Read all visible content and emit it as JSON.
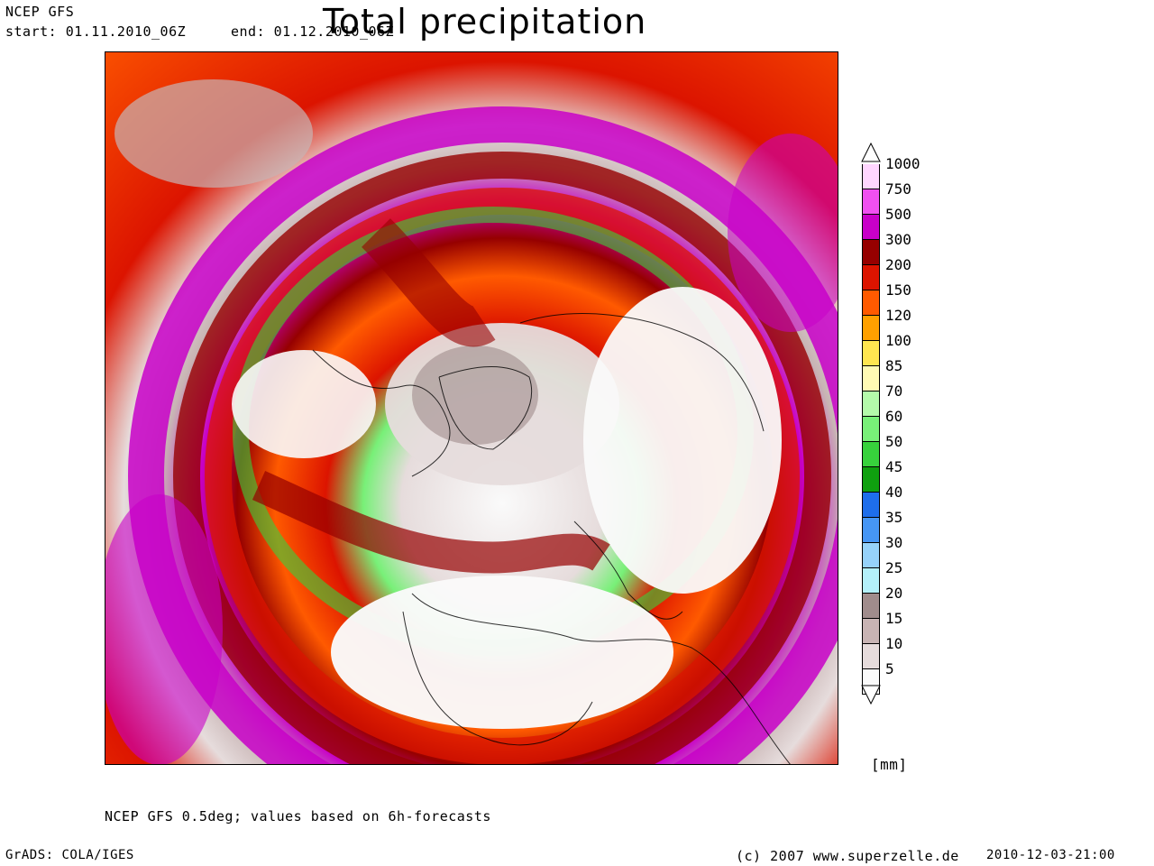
{
  "header": {
    "model": "NCEP GFS",
    "start": "start: 01.11.2010_06Z",
    "end": "end: 01.12.2010_06Z",
    "title": "Total precipitation"
  },
  "legend": {
    "unit": "[mm]",
    "levels": [
      {
        "label": "1000",
        "color": "#ffd6ff"
      },
      {
        "label": "750",
        "color": "#f050f0"
      },
      {
        "label": "500",
        "color": "#c800c8"
      },
      {
        "label": "300",
        "color": "#960000"
      },
      {
        "label": "200",
        "color": "#dc1400"
      },
      {
        "label": "150",
        "color": "#ff5a00"
      },
      {
        "label": "120",
        "color": "#ffa000"
      },
      {
        "label": "100",
        "color": "#ffe650"
      },
      {
        "label": "85",
        "color": "#fffab4"
      },
      {
        "label": "70",
        "color": "#b4faaa"
      },
      {
        "label": "60",
        "color": "#78f078"
      },
      {
        "label": "50",
        "color": "#37d23c"
      },
      {
        "label": "45",
        "color": "#0fa00f"
      },
      {
        "label": "40",
        "color": "#1e6eeb"
      },
      {
        "label": "35",
        "color": "#4696f5"
      },
      {
        "label": "30",
        "color": "#96d2fa"
      },
      {
        "label": "25",
        "color": "#b4f0fa"
      },
      {
        "label": "20",
        "color": "#a08c8c"
      },
      {
        "label": "15",
        "color": "#c8b4b4"
      },
      {
        "label": "10",
        "color": "#e6dcdc"
      },
      {
        "label": "5",
        "color": "#fafafa"
      }
    ]
  },
  "footer": {
    "note": "NCEP GFS 0.5deg; values based on 6h-forecasts",
    "grads": "GrADS: COLA/IGES",
    "copyright": "(c) 2007 www.superzelle.de",
    "timestamp": "2010-12-03-21:00"
  }
}
